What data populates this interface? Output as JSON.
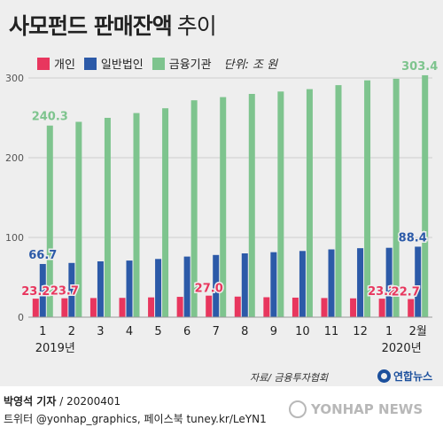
{
  "title": "사모펀드 판매잔액",
  "subtitle": "추이",
  "unit": "단위: 조 원",
  "colors": {
    "individual": "#e8365e",
    "corporate": "#2c5aa8",
    "financial": "#7ec48e",
    "grid": "#cfcfcf",
    "axis": "#999999"
  },
  "chart_data": {
    "type": "bar",
    "categories": [
      "1",
      "2",
      "3",
      "4",
      "5",
      "6",
      "7",
      "8",
      "9",
      "10",
      "11",
      "12",
      "1",
      "2월"
    ],
    "year_labels": [
      {
        "index": 0,
        "text": "2019년"
      },
      {
        "index": 12,
        "text": "2020년"
      }
    ],
    "ylim": [
      0,
      300
    ],
    "yticks": [
      0,
      100,
      200,
      300
    ],
    "series": [
      {
        "name": "개인",
        "key": "individual",
        "values": [
          23.2,
          23.7,
          24.0,
          24.2,
          24.8,
          25.5,
          27.0,
          25.8,
          25.0,
          24.5,
          24.0,
          23.6,
          23.2,
          22.7
        ]
      },
      {
        "name": "일반법인",
        "key": "corporate",
        "values": [
          66.7,
          68.0,
          70.0,
          71.0,
          73.0,
          76.0,
          78.0,
          80.0,
          81.5,
          83.0,
          85.0,
          86.5,
          87.0,
          88.4
        ]
      },
      {
        "name": "금융기관",
        "key": "financial",
        "values": [
          240.3,
          245.0,
          250.0,
          256.0,
          262.0,
          272.0,
          276.0,
          280.0,
          283.0,
          286.0,
          291.0,
          297.0,
          299.0,
          303.4
        ]
      }
    ],
    "data_labels": [
      {
        "series": "individual",
        "index": 0,
        "text": "23.2"
      },
      {
        "series": "individual",
        "index": 1,
        "text": "23.7"
      },
      {
        "series": "individual",
        "index": 6,
        "text": "27.0"
      },
      {
        "series": "individual",
        "index": 12,
        "text": "23.2"
      },
      {
        "series": "individual",
        "index": 13,
        "text": "22.7"
      },
      {
        "series": "corporate",
        "index": 0,
        "text": "66.7"
      },
      {
        "series": "corporate",
        "index": 13,
        "text": "88.4"
      },
      {
        "series": "financial",
        "index": 0,
        "text": "240.3"
      },
      {
        "series": "financial",
        "index": 13,
        "text": "303.4"
      }
    ],
    "grid": true,
    "legend": "top-left"
  },
  "source": "자료/ 금융투자협회",
  "brand": "연합뉴스",
  "credit_name": "박영석 기자",
  "credit_date": "/ 20200401",
  "social": "트위터 @yonhap_graphics, 페이스북 tuney.kr/LeYN1",
  "agency": "YONHAP NEWS"
}
